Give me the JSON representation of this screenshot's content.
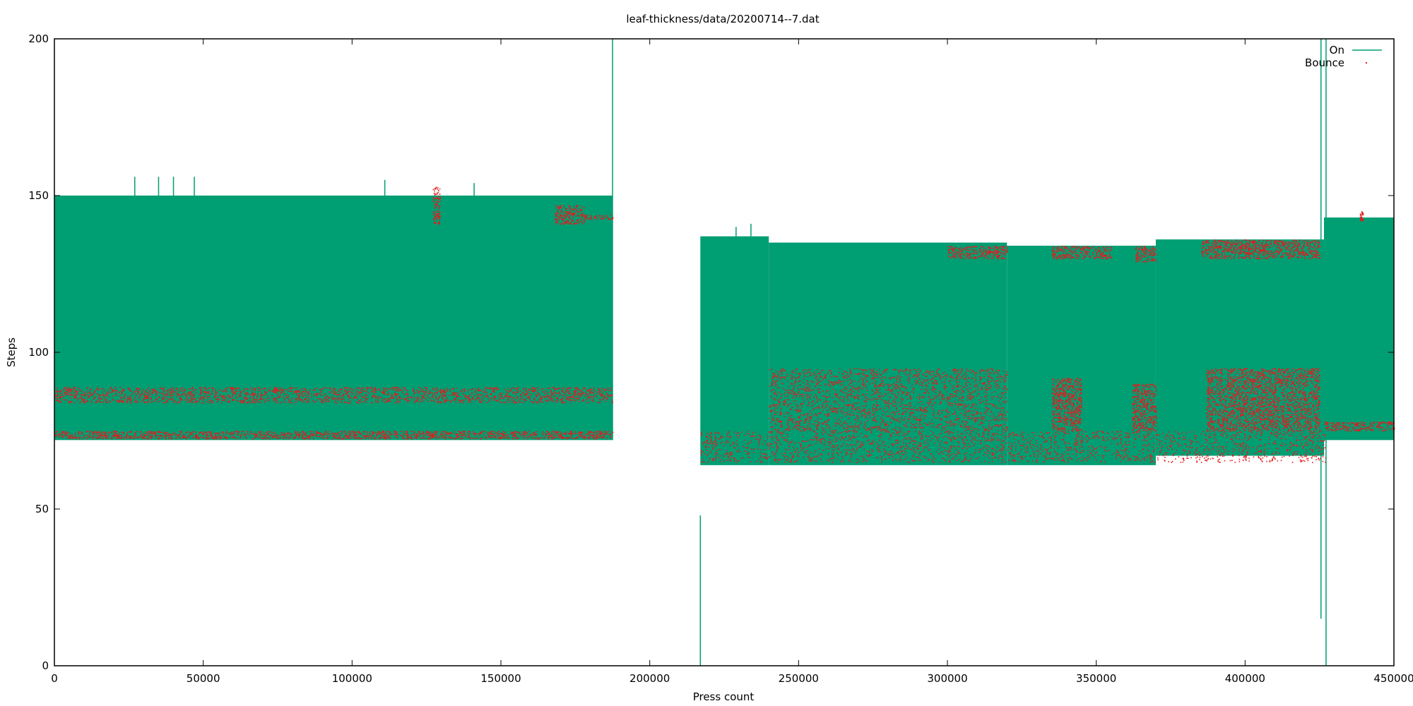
{
  "chart_data": {
    "type": "line",
    "title": "leaf-thickness/data/20200714--7.dat",
    "xlabel": "Press count",
    "ylabel": "Steps",
    "xlim": [
      0,
      450000
    ],
    "ylim": [
      0,
      200
    ],
    "xticks": [
      0,
      50000,
      100000,
      150000,
      200000,
      250000,
      300000,
      350000,
      400000,
      450000
    ],
    "xtick_labels": [
      "0",
      "50000",
      "100000",
      "150000",
      "200000",
      "250000",
      "300000",
      "350000",
      "400000",
      "450000"
    ],
    "yticks": [
      0,
      50,
      100,
      150,
      200
    ],
    "ytick_labels": [
      "0",
      "50",
      "100",
      "150",
      "200"
    ],
    "grid": false,
    "legend_position": "top-right",
    "colors": {
      "on": "#009e73",
      "bounce": "#e41a1c"
    },
    "series": [
      {
        "name": "On",
        "style": "line",
        "band_segments": [
          {
            "x": [
              0,
              187500
            ],
            "y_low": 72,
            "y_high": 150
          },
          {
            "x": [
              217000,
              240000
            ],
            "y_low": 64,
            "y_high": 137
          },
          {
            "x": [
              240000,
              320000
            ],
            "y_low": 64,
            "y_high": 135
          },
          {
            "x": [
              320000,
              370000
            ],
            "y_low": 64,
            "y_high": 134
          },
          {
            "x": [
              370000,
              426500
            ],
            "y_low": 67,
            "y_high": 136
          },
          {
            "x": [
              426500,
              450000
            ],
            "y_low": 72,
            "y_high": 143
          }
        ],
        "spikes": [
          {
            "x": 187500,
            "y_low": 72,
            "y_high": 200
          },
          {
            "x": 217000,
            "y_low": 0,
            "y_high": 48
          },
          {
            "x": 425500,
            "y_low": 15,
            "y_high": 200
          },
          {
            "x": 427200,
            "y_low": 0,
            "y_high": 200
          },
          {
            "x": 27000,
            "y_low": 150,
            "y_high": 156
          },
          {
            "x": 35000,
            "y_low": 150,
            "y_high": 156
          },
          {
            "x": 40000,
            "y_low": 150,
            "y_high": 156
          },
          {
            "x": 47000,
            "y_low": 150,
            "y_high": 156
          },
          {
            "x": 111000,
            "y_low": 150,
            "y_high": 155
          },
          {
            "x": 141000,
            "y_low": 149,
            "y_high": 154
          },
          {
            "x": 229000,
            "y_low": 137,
            "y_high": 140
          },
          {
            "x": 234000,
            "y_low": 137,
            "y_high": 141
          }
        ]
      },
      {
        "name": "Bounce",
        "style": "points",
        "bands": [
          {
            "x": [
              0,
              187500
            ],
            "y": [
              72.5,
              75
            ]
          },
          {
            "x": [
              0,
              187500
            ],
            "y": [
              84,
              89
            ]
          },
          {
            "x": [
              127000,
              129500
            ],
            "y": [
              141,
              153
            ]
          },
          {
            "x": [
              168000,
              178000
            ],
            "y": [
              141,
              147
            ]
          },
          {
            "x": [
              178000,
              187500
            ],
            "y": [
              142.5,
              144
            ]
          },
          {
            "x": [
              217000,
              427000
            ],
            "y": [
              65,
              75
            ]
          },
          {
            "x": [
              240000,
              320000
            ],
            "y": [
              75,
              95
            ]
          },
          {
            "x": [
              335000,
              345000
            ],
            "y": [
              75,
              92
            ]
          },
          {
            "x": [
              362000,
              370000
            ],
            "y": [
              75,
              90
            ]
          },
          {
            "x": [
              387000,
              425000
            ],
            "y": [
              75,
              95
            ]
          },
          {
            "x": [
              300000,
              320000
            ],
            "y": [
              130,
              134
            ]
          },
          {
            "x": [
              335000,
              355000
            ],
            "y": [
              130,
              134
            ]
          },
          {
            "x": [
              363000,
              370000
            ],
            "y": [
              129,
              134
            ]
          },
          {
            "x": [
              385000,
              425000
            ],
            "y": [
              130,
              136
            ]
          },
          {
            "x": [
              426500,
              450000
            ],
            "y": [
              75,
              78
            ]
          },
          {
            "x": [
              438500,
              439500
            ],
            "y": [
              142,
              145
            ]
          }
        ]
      }
    ]
  }
}
